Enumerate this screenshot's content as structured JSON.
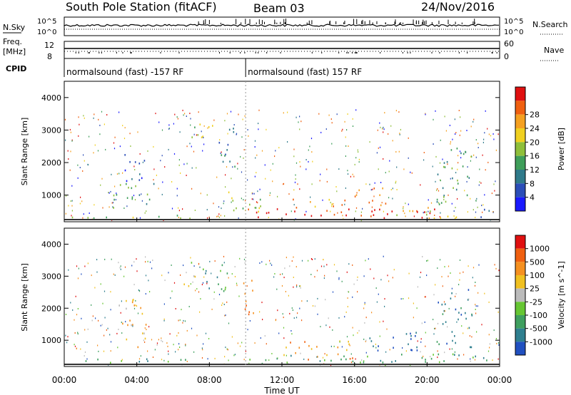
{
  "header": {
    "title": "South Pole Station (fitACF)",
    "beam": "Beam 03",
    "date": "24/Nov/2016"
  },
  "summary_panels": {
    "nsky_label": "N.Sky",
    "nsearch_label": "N.Search",
    "freq_label_line1": "Freq.",
    "freq_label_line2": "[MHz]",
    "nave_label": "Nave",
    "cpid_label": "CPID",
    "nsky_ticks": [
      "10^5",
      "10^0"
    ],
    "nsearch_ticks": [
      "10^5",
      "10^0"
    ],
    "freq_ticks": [
      "12",
      "8"
    ],
    "nave_ticks": [
      "60",
      "0"
    ],
    "cpid_segments": [
      {
        "label": "normalsound (fast) -157 RF",
        "start_hour": 0,
        "end_hour": 10.0
      },
      {
        "label": "normalsound (fast) 157 RF",
        "start_hour": 10.0,
        "end_hour": 24
      }
    ]
  },
  "chart_data": [
    {
      "type": "heatmap",
      "name": "power",
      "ylabel": "Slant Range [km]",
      "ylim": [
        180,
        4500
      ],
      "yticks": [
        1000,
        2000,
        3000,
        4000
      ],
      "xlim": [
        0,
        24
      ],
      "colorbar_label": "Power [dB]",
      "colorbar_ticks": [
        4,
        8,
        12,
        16,
        20,
        24,
        28
      ],
      "colorbar_colors": [
        "#1a1aff",
        "#2b4eb8",
        "#2f7a8a",
        "#3f9e5a",
        "#8fbf3a",
        "#f0d020",
        "#f5a020",
        "#f06010",
        "#e01010"
      ],
      "regions": [
        {
          "t0": 0.3,
          "t1": 7.5,
          "r0": 300,
          "r1": 450,
          "level": 4
        },
        {
          "t0": 2.5,
          "t1": 5.0,
          "r0": 600,
          "r1": 1400,
          "level": 3
        },
        {
          "t0": 3.0,
          "t1": 4.5,
          "r0": 1400,
          "r1": 2300,
          "level": 1
        },
        {
          "t0": 6.8,
          "t1": 8.2,
          "r0": 2800,
          "r1": 3500,
          "level": 4
        },
        {
          "t0": 8.5,
          "t1": 9.5,
          "r0": 1800,
          "r1": 3200,
          "level": 2
        },
        {
          "t0": 9.0,
          "t1": 11.0,
          "r0": 400,
          "r1": 1200,
          "level": 4
        },
        {
          "t0": 10.0,
          "t1": 20.5,
          "r0": 250,
          "r1": 600,
          "level": 8
        },
        {
          "t0": 12.5,
          "t1": 16.0,
          "r0": 600,
          "r1": 900,
          "level": 6
        },
        {
          "t0": 16.0,
          "t1": 18.0,
          "r0": 700,
          "r1": 1300,
          "level": 7
        },
        {
          "t0": 18.0,
          "t1": 22.0,
          "r0": 300,
          "r1": 700,
          "level": 5
        },
        {
          "t0": 20.5,
          "t1": 22.5,
          "r0": 700,
          "r1": 2500,
          "level": 3
        },
        {
          "t0": 22.5,
          "t1": 24.0,
          "r0": 300,
          "r1": 600,
          "level": 2
        }
      ]
    },
    {
      "type": "heatmap",
      "name": "velocity",
      "ylabel": "Slant Range [km]",
      "ylim": [
        180,
        4500
      ],
      "yticks": [
        1000,
        2000,
        3000,
        4000
      ],
      "xlim": [
        0,
        24
      ],
      "xlabel": "Time UT",
      "xticks": [
        "00:00",
        "04:00",
        "08:00",
        "12:00",
        "16:00",
        "20:00",
        "00:00"
      ],
      "colorbar_label": "Velocity [m s^-1]",
      "colorbar_ticks": [
        1000,
        500,
        100,
        25,
        -25,
        -100,
        -500,
        -1000
      ],
      "colorbar_colors": [
        "#2050c0",
        "#2f7f8f",
        "#3f9f5f",
        "#66c633",
        "#bbbbbb",
        "#f0c020",
        "#f59020",
        "#f06010",
        "#e01010"
      ],
      "regions": [
        {
          "t0": 0.3,
          "t1": 8.0,
          "r0": 300,
          "r1": 450,
          "level": 2
        },
        {
          "t0": 3.0,
          "t1": 4.5,
          "r0": 700,
          "r1": 2300,
          "level": 5
        },
        {
          "t0": 6.5,
          "t1": 7.2,
          "r0": 2700,
          "r1": 3500,
          "level": 4
        },
        {
          "t0": 7.5,
          "t1": 9.0,
          "r0": 2500,
          "r1": 3600,
          "level": 2
        },
        {
          "t0": 9.5,
          "t1": 10.5,
          "r0": 1800,
          "r1": 3000,
          "level": 6
        },
        {
          "t0": 10.0,
          "t1": 22.0,
          "r0": 250,
          "r1": 600,
          "level": 2
        },
        {
          "t0": 12.0,
          "t1": 16.0,
          "r0": 400,
          "r1": 1000,
          "level": 6
        },
        {
          "t0": 16.5,
          "t1": 19.5,
          "r0": 700,
          "r1": 1400,
          "level": 0
        },
        {
          "t0": 20.5,
          "t1": 22.5,
          "r0": 800,
          "r1": 2600,
          "level": 1
        },
        {
          "t0": 22.5,
          "t1": 24.0,
          "r0": 300,
          "r1": 600,
          "level": 2
        }
      ]
    }
  ]
}
